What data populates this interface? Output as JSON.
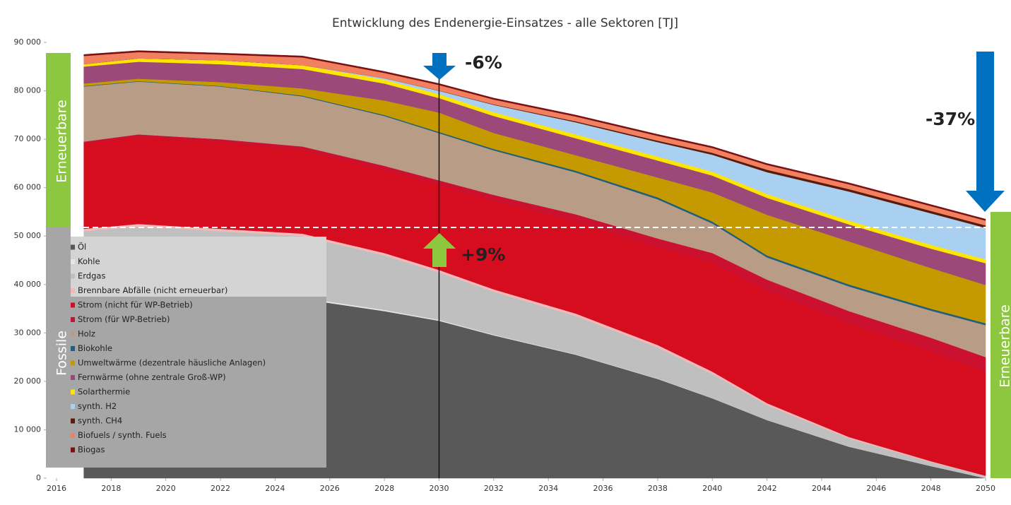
{
  "chart_data": {
    "type": "stacked_area",
    "title": "Entwicklung des Endenergie-Einsatzes - alle Sektoren [TJ]",
    "x": [
      2017,
      2019,
      2022,
      2025,
      2028,
      2030,
      2032,
      2035,
      2038,
      2040,
      2042,
      2045,
      2048,
      2050
    ],
    "xlim": [
      2016,
      2050
    ],
    "xticks": [
      2016,
      2018,
      2020,
      2022,
      2024,
      2026,
      2028,
      2030,
      2032,
      2034,
      2036,
      2038,
      2040,
      2042,
      2044,
      2046,
      2048,
      2050
    ],
    "ylim": [
      0,
      90000
    ],
    "yticks": [
      0,
      {
        "value": 10000,
        "label": "10 000"
      },
      {
        "value": 20000,
        "label": "20 000"
      },
      {
        "value": 30000,
        "label": "30 000"
      },
      {
        "value": 40000,
        "label": "40 000"
      },
      {
        "value": 50000,
        "label": "50 000"
      },
      {
        "value": 60000,
        "label": "60 000"
      },
      {
        "value": 70000,
        "label": "70 000"
      },
      {
        "value": 80000,
        "label": "80 000"
      },
      {
        "value": 90000,
        "label": "90 000"
      }
    ],
    "legend": "lower left",
    "series": [
      {
        "name": "Öl",
        "color": "#595959",
        "values": [
          37500,
          37800,
          37300,
          37000,
          34500,
          32500,
          29500,
          25500,
          20500,
          16500,
          12000,
          6500,
          2500,
          0
        ]
      },
      {
        "name": "Kohle",
        "color": "#e6e6e6",
        "values": [
          400,
          400,
          350,
          300,
          250,
          200,
          150,
          100,
          80,
          60,
          40,
          20,
          10,
          0
        ]
      },
      {
        "name": "Erdgas",
        "color": "#bfbfbf",
        "values": [
          13100,
          13800,
          13350,
          12700,
          11250,
          9800,
          8850,
          7900,
          6420,
          4940,
          3060,
          1680,
          790,
          400
        ]
      },
      {
        "name": "Brennbare Abfälle (nicht erneuerbar)",
        "color": "#f4b8b8",
        "values": [
          500,
          500,
          500,
          500,
          500,
          500,
          500,
          500,
          500,
          500,
          400,
          300,
          200,
          100
        ]
      },
      {
        "name": "Strom (nicht für WP-Betrieb)",
        "color": "#d60d1f",
        "values": [
          17500,
          18000,
          17900,
          17300,
          17100,
          17500,
          18300,
          19000,
          20200,
          22500,
          23300,
          23500,
          22700,
          21500
        ]
      },
      {
        "name": "Strom (für WP-Betrieb)",
        "color": "#cc1030",
        "values": [
          500,
          500,
          600,
          700,
          900,
          1000,
          1200,
          1500,
          1800,
          2000,
          2200,
          2500,
          2800,
          3000
        ]
      },
      {
        "name": "Holz",
        "color": "#b99c86",
        "values": [
          11400,
          10900,
          10900,
          10350,
          10300,
          9750,
          9200,
          8650,
          8100,
          6100,
          4600,
          5100,
          5600,
          6600
        ]
      },
      {
        "name": "Biokohle",
        "color": "#1f5f7a",
        "values": [
          100,
          100,
          100,
          150,
          200,
          250,
          300,
          350,
          400,
          400,
          400,
          400,
          400,
          400
        ]
      },
      {
        "name": "Umweltwärme (dezentrale häusliche Anlagen)",
        "color": "#c49a00",
        "values": [
          500,
          500,
          800,
          1500,
          3000,
          4000,
          3300,
          3200,
          4100,
          6000,
          8400,
          8900,
          8400,
          7900
        ]
      },
      {
        "name": "Fernwärme (ohne zentrale Groß-WP)",
        "color": "#9c4878",
        "values": [
          3500,
          3500,
          3700,
          4000,
          3500,
          3000,
          3500,
          3500,
          3500,
          3500,
          3500,
          3500,
          4000,
          4500
        ]
      },
      {
        "name": "Solarthermie",
        "color": "#ffe600",
        "values": [
          500,
          700,
          800,
          800,
          800,
          800,
          800,
          800,
          800,
          800,
          800,
          800,
          800,
          800
        ]
      },
      {
        "name": "synth. H2",
        "color": "#a9d0f0",
        "values": [
          0,
          0,
          0,
          0,
          300,
          700,
          1500,
          2500,
          3000,
          3500,
          4500,
          6000,
          6500,
          6500
        ]
      },
      {
        "name": "synth. CH4",
        "color": "#5a1a0a",
        "values": [
          0,
          0,
          0,
          0,
          0,
          50,
          100,
          200,
          300,
          400,
          500,
          500,
          500,
          500
        ]
      },
      {
        "name": "Biofuels / synth. Fuels",
        "color": "#f08060",
        "values": [
          1700,
          1300,
          1200,
          1600,
          1100,
          1150,
          1000,
          1000,
          1000,
          1000,
          1000,
          1000,
          1000,
          1000
        ]
      },
      {
        "name": "Biogas",
        "color": "#7a1010",
        "values": [
          300,
          300,
          300,
          300,
          300,
          300,
          300,
          300,
          300,
          300,
          300,
          300,
          300,
          300
        ]
      }
    ],
    "annotations": [
      "-6%",
      "+9%",
      "-37%"
    ],
    "side_labels": [
      "Erneuerbare",
      "Fossile",
      "Erneuerbare"
    ]
  }
}
